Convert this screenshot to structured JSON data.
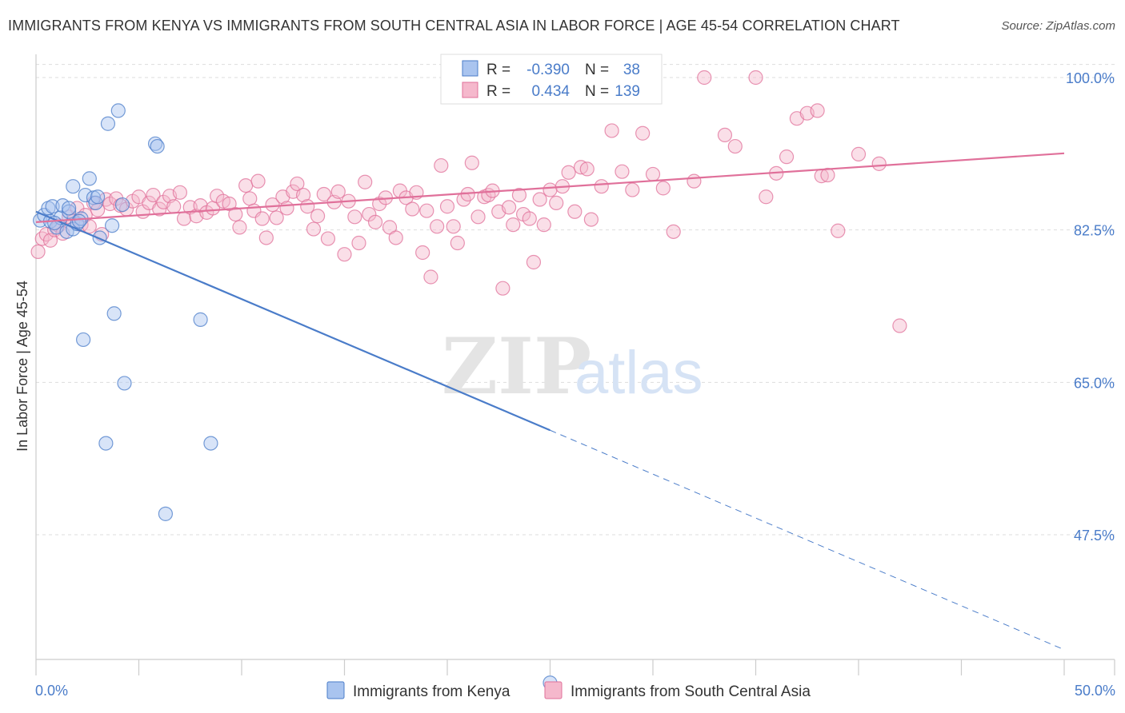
{
  "title": "IMMIGRANTS FROM KENYA VS IMMIGRANTS FROM SOUTH CENTRAL ASIA IN LABOR FORCE | AGE 45-54 CORRELATION CHART",
  "source": "Source: ZipAtlas.com",
  "watermark": {
    "zip": "ZIP",
    "atlas": "atlas"
  },
  "colors": {
    "blue": "#4a7cc9",
    "blue_fill": "#a9c4ef",
    "pink": "#e0709a",
    "pink_fill": "#f5b8cc",
    "grid": "#dddddd"
  },
  "legend": {
    "rows": [
      {
        "r_label": "R =",
        "r_value": "-0.390",
        "n_label": "N =",
        "n_value": "38"
      },
      {
        "r_label": "R =",
        "r_value": "0.434",
        "n_label": "N =",
        "n_value": "139"
      }
    ]
  },
  "chart_data": {
    "type": "scatter",
    "xlabel": "",
    "ylabel": "In Labor Force | Age 45-54",
    "xlim": [
      0,
      50
    ],
    "ylim": [
      32,
      101.5
    ],
    "x_tick_labels": [
      "0.0%",
      "50.0%"
    ],
    "y_ticks": [
      {
        "value": 100,
        "label": "100.0%"
      },
      {
        "value": 82.5,
        "label": "82.5%"
      },
      {
        "value": 65,
        "label": "65.0%"
      },
      {
        "value": 47.5,
        "label": "47.5%"
      }
    ],
    "grid": true,
    "legend_position": "bottom",
    "series": [
      {
        "name": "Immigrants from Kenya",
        "color": "#4a7cc9",
        "fill": "#a9c4ef",
        "trend": {
          "x0": 0,
          "y0": 84.6,
          "x1": 25,
          "y1": 59.5,
          "x_dash_end": 50,
          "y_dash_end": 34.3
        },
        "points": [
          [
            0.2,
            83.6
          ],
          [
            0.4,
            84.2
          ],
          [
            0.6,
            85.0
          ],
          [
            0.7,
            83.5
          ],
          [
            0.8,
            85.2
          ],
          [
            1.0,
            82.8
          ],
          [
            1.2,
            83.9
          ],
          [
            1.3,
            85.3
          ],
          [
            1.5,
            82.3
          ],
          [
            1.6,
            84.6
          ],
          [
            1.8,
            82.6
          ],
          [
            1.8,
            87.5
          ],
          [
            2.0,
            83.2
          ],
          [
            2.2,
            83.8
          ],
          [
            2.4,
            86.5
          ],
          [
            2.6,
            88.4
          ],
          [
            2.8,
            86.2
          ],
          [
            2.9,
            85.6
          ],
          [
            3.0,
            86.3
          ],
          [
            3.1,
            81.6
          ],
          [
            3.5,
            94.7
          ],
          [
            3.7,
            83.0
          ],
          [
            3.8,
            72.9
          ],
          [
            4.0,
            96.2
          ],
          [
            4.2,
            85.4
          ],
          [
            4.3,
            64.9
          ],
          [
            5.8,
            92.4
          ],
          [
            5.9,
            92.1
          ],
          [
            6.3,
            49.9
          ],
          [
            8.0,
            72.2
          ],
          [
            8.5,
            58.0
          ],
          [
            2.3,
            69.9
          ],
          [
            3.4,
            58.0
          ],
          [
            23.5,
            100.0
          ],
          [
            25.0,
            30.5
          ],
          [
            1.6,
            85.0
          ],
          [
            0.9,
            83.3
          ],
          [
            2.1,
            83.5
          ]
        ]
      },
      {
        "name": "Immigrants from South Central Asia",
        "color": "#e0709a",
        "fill": "#f5b8cc",
        "trend": {
          "x0": 0,
          "y0": 83.4,
          "x1": 50,
          "y1": 91.3
        },
        "points": [
          [
            0.1,
            80.0
          ],
          [
            0.3,
            81.5
          ],
          [
            0.5,
            82.0
          ],
          [
            0.7,
            81.3
          ],
          [
            0.9,
            82.5
          ],
          [
            1.1,
            83.0
          ],
          [
            1.3,
            82.1
          ],
          [
            1.6,
            84.0
          ],
          [
            1.8,
            83.5
          ],
          [
            2.0,
            85.0
          ],
          [
            2.2,
            83.1
          ],
          [
            2.4,
            84.2
          ],
          [
            2.6,
            82.9
          ],
          [
            2.8,
            85.6
          ],
          [
            3.0,
            84.8
          ],
          [
            3.2,
            82.0
          ],
          [
            3.4,
            86.0
          ],
          [
            3.6,
            85.5
          ],
          [
            3.9,
            86.1
          ],
          [
            4.1,
            85.3
          ],
          [
            4.4,
            84.9
          ],
          [
            4.7,
            85.8
          ],
          [
            5.0,
            86.3
          ],
          [
            5.2,
            84.6
          ],
          [
            5.5,
            85.6
          ],
          [
            5.7,
            86.5
          ],
          [
            6.0,
            84.9
          ],
          [
            6.2,
            85.7
          ],
          [
            6.5,
            86.4
          ],
          [
            6.7,
            85.2
          ],
          [
            7.0,
            86.8
          ],
          [
            7.2,
            83.8
          ],
          [
            7.5,
            85.1
          ],
          [
            7.8,
            84.1
          ],
          [
            8.0,
            85.3
          ],
          [
            8.3,
            84.5
          ],
          [
            8.6,
            85.0
          ],
          [
            8.8,
            86.4
          ],
          [
            9.1,
            85.8
          ],
          [
            9.4,
            85.5
          ],
          [
            9.7,
            84.3
          ],
          [
            9.9,
            82.8
          ],
          [
            10.2,
            87.6
          ],
          [
            10.4,
            86.1
          ],
          [
            10.6,
            84.7
          ],
          [
            10.8,
            88.1
          ],
          [
            11.0,
            83.8
          ],
          [
            11.2,
            81.6
          ],
          [
            11.5,
            85.4
          ],
          [
            11.7,
            83.9
          ],
          [
            12.0,
            86.3
          ],
          [
            12.2,
            85.0
          ],
          [
            12.5,
            86.9
          ],
          [
            12.7,
            87.8
          ],
          [
            13.0,
            86.5
          ],
          [
            13.2,
            85.2
          ],
          [
            13.5,
            82.6
          ],
          [
            13.7,
            84.1
          ],
          [
            14.0,
            86.6
          ],
          [
            14.2,
            81.5
          ],
          [
            14.5,
            85.7
          ],
          [
            14.7,
            86.9
          ],
          [
            15.0,
            79.7
          ],
          [
            15.2,
            85.8
          ],
          [
            15.5,
            84.0
          ],
          [
            15.7,
            81.0
          ],
          [
            16.0,
            88.0
          ],
          [
            16.2,
            84.3
          ],
          [
            16.5,
            83.4
          ],
          [
            16.7,
            85.5
          ],
          [
            17.0,
            86.2
          ],
          [
            17.2,
            82.8
          ],
          [
            17.5,
            81.6
          ],
          [
            17.7,
            87.0
          ],
          [
            18.0,
            86.2
          ],
          [
            18.3,
            84.9
          ],
          [
            18.5,
            86.8
          ],
          [
            18.8,
            79.9
          ],
          [
            19.0,
            84.7
          ],
          [
            19.2,
            77.1
          ],
          [
            19.5,
            82.9
          ],
          [
            19.7,
            89.9
          ],
          [
            20.0,
            85.2
          ],
          [
            20.3,
            82.9
          ],
          [
            20.5,
            81.0
          ],
          [
            20.8,
            86.0
          ],
          [
            21.0,
            86.6
          ],
          [
            21.2,
            90.2
          ],
          [
            21.5,
            84.0
          ],
          [
            21.8,
            86.3
          ],
          [
            22.0,
            86.5
          ],
          [
            22.2,
            87.0
          ],
          [
            22.5,
            84.6
          ],
          [
            22.7,
            75.8
          ],
          [
            23.0,
            85.1
          ],
          [
            23.2,
            83.1
          ],
          [
            23.5,
            86.5
          ],
          [
            23.7,
            84.3
          ],
          [
            24.0,
            83.8
          ],
          [
            24.2,
            78.8
          ],
          [
            24.5,
            86.0
          ],
          [
            24.7,
            83.1
          ],
          [
            25.0,
            87.1
          ],
          [
            25.3,
            85.6
          ],
          [
            25.6,
            87.5
          ],
          [
            25.9,
            89.1
          ],
          [
            26.2,
            84.6
          ],
          [
            26.5,
            89.7
          ],
          [
            26.8,
            89.5
          ],
          [
            27.0,
            83.7
          ],
          [
            27.5,
            87.5
          ],
          [
            28.0,
            93.9
          ],
          [
            28.5,
            89.2
          ],
          [
            29.0,
            87.1
          ],
          [
            29.5,
            93.6
          ],
          [
            30.0,
            88.9
          ],
          [
            30.5,
            87.3
          ],
          [
            31.0,
            82.3
          ],
          [
            32.0,
            88.1
          ],
          [
            32.5,
            100.0
          ],
          [
            33.5,
            93.4
          ],
          [
            34.0,
            92.1
          ],
          [
            35.0,
            100.0
          ],
          [
            35.5,
            86.3
          ],
          [
            36.0,
            89.0
          ],
          [
            36.5,
            90.9
          ],
          [
            37.0,
            95.3
          ],
          [
            37.5,
            95.9
          ],
          [
            38.0,
            96.2
          ],
          [
            38.2,
            88.7
          ],
          [
            38.5,
            88.8
          ],
          [
            39.0,
            82.4
          ],
          [
            40.0,
            91.2
          ],
          [
            41.0,
            90.1
          ],
          [
            42.0,
            71.5
          ]
        ]
      }
    ]
  }
}
